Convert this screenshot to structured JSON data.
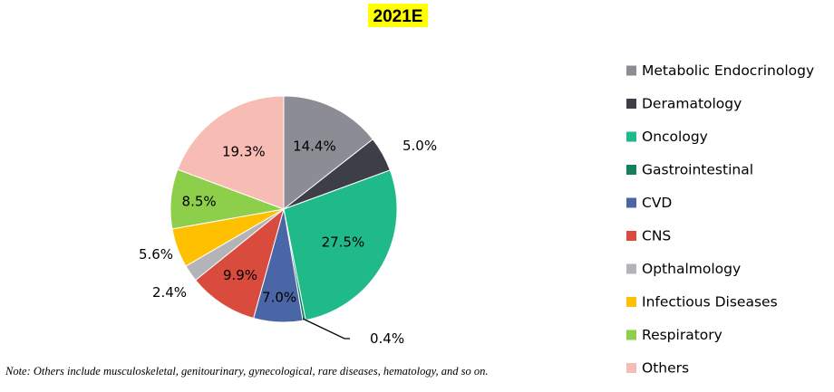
{
  "chart_data": {
    "type": "pie",
    "title": "2021E",
    "categories": [
      "Metabolic Endocrinology",
      "Deramatology",
      "Oncology",
      "Gastrointestinal",
      "CVD",
      "CNS",
      "Opthalmology",
      "Infectious Diseases",
      "Respiratory",
      "Others"
    ],
    "values": [
      14.4,
      5.0,
      27.5,
      0.4,
      7.0,
      9.9,
      2.4,
      5.6,
      8.5,
      19.3
    ],
    "data_labels": [
      "14.4%",
      "5.0%",
      "27.5%",
      "0.4%",
      "7.0%",
      "9.9%",
      "2.4%",
      "5.6%",
      "8.5%",
      "19.3%"
    ],
    "colors": [
      "#8c8c94",
      "#3c3f48",
      "#1fb98a",
      "#15805e",
      "#4a66a6",
      "#d84b3d",
      "#b4b4b8",
      "#ffc000",
      "#8dcf4a",
      "#f7bcb4"
    ],
    "legend_position": "right",
    "start_angle": "12 o'clock",
    "direction": "clockwise"
  },
  "note": "Note: Others include musculoskeletal, genitourinary, gynecological, rare diseases, hematology, and so on."
}
